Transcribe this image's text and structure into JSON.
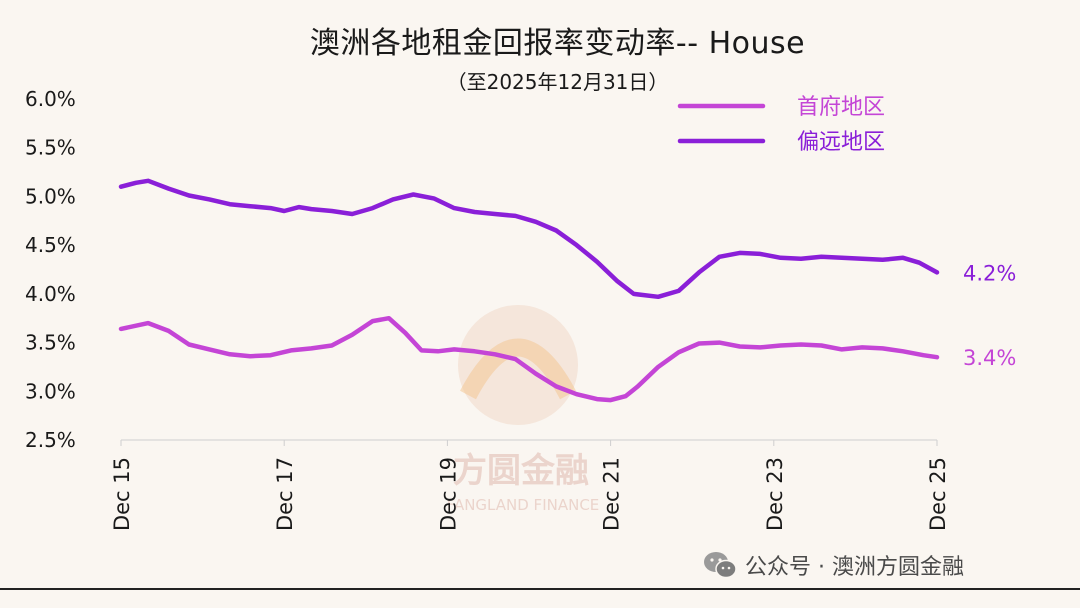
{
  "title": "澳洲各地租金回报率变动率-- House",
  "subtitle": "（至2025年12月31日）",
  "footer": {
    "account": "公众号 · 澳洲方圆金融"
  },
  "logo": {
    "text_cn": "方圆金融",
    "text_en": "FANGLAND FINANCE"
  },
  "colors": {
    "capital": "#c445d6",
    "regional": "#8a1fd8",
    "background": "#faf6f1"
  },
  "chart_data": {
    "type": "line",
    "x_ticks": [
      "Dec 15",
      "Dec 17",
      "Dec 19",
      "Dec 21",
      "Dec 23",
      "Dec 25"
    ],
    "y_ticks": [
      "6.0%",
      "5.5%",
      "5.0%",
      "4.5%",
      "4.0%",
      "3.5%",
      "3.0%",
      "2.5%"
    ],
    "ylim": [
      2.5,
      6.0
    ],
    "xlim": [
      2015.917,
      2025.917
    ],
    "legend_position": "top-right",
    "series": [
      {
        "name": "首府地区",
        "color": "#c445d6",
        "end_label": "3.4%",
        "points": [
          [
            2015.917,
            3.64
          ],
          [
            2016.25,
            3.7
          ],
          [
            2016.5,
            3.62
          ],
          [
            2016.75,
            3.48
          ],
          [
            2017.0,
            3.43
          ],
          [
            2017.25,
            3.38
          ],
          [
            2017.5,
            3.36
          ],
          [
            2017.75,
            3.37
          ],
          [
            2018.0,
            3.42
          ],
          [
            2018.25,
            3.44
          ],
          [
            2018.5,
            3.47
          ],
          [
            2018.75,
            3.58
          ],
          [
            2019.0,
            3.72
          ],
          [
            2019.2,
            3.75
          ],
          [
            2019.4,
            3.6
          ],
          [
            2019.6,
            3.42
          ],
          [
            2019.8,
            3.41
          ],
          [
            2020.0,
            3.43
          ],
          [
            2020.25,
            3.41
          ],
          [
            2020.5,
            3.38
          ],
          [
            2020.75,
            3.33
          ],
          [
            2021.0,
            3.18
          ],
          [
            2021.25,
            3.05
          ],
          [
            2021.5,
            2.97
          ],
          [
            2021.75,
            2.92
          ],
          [
            2021.917,
            2.91
          ],
          [
            2022.1,
            2.95
          ],
          [
            2022.25,
            3.05
          ],
          [
            2022.5,
            3.25
          ],
          [
            2022.75,
            3.4
          ],
          [
            2023.0,
            3.49
          ],
          [
            2023.25,
            3.5
          ],
          [
            2023.5,
            3.46
          ],
          [
            2023.75,
            3.45
          ],
          [
            2024.0,
            3.47
          ],
          [
            2024.25,
            3.48
          ],
          [
            2024.5,
            3.47
          ],
          [
            2024.75,
            3.43
          ],
          [
            2025.0,
            3.45
          ],
          [
            2025.25,
            3.44
          ],
          [
            2025.5,
            3.41
          ],
          [
            2025.75,
            3.37
          ],
          [
            2025.917,
            3.35
          ]
        ]
      },
      {
        "name": "偏远地区",
        "color": "#8a1fd8",
        "end_label": "4.2%",
        "points": [
          [
            2015.917,
            5.1
          ],
          [
            2016.1,
            5.14
          ],
          [
            2016.25,
            5.16
          ],
          [
            2016.5,
            5.08
          ],
          [
            2016.75,
            5.01
          ],
          [
            2017.0,
            4.97
          ],
          [
            2017.25,
            4.92
          ],
          [
            2017.5,
            4.9
          ],
          [
            2017.75,
            4.88
          ],
          [
            2017.917,
            4.85
          ],
          [
            2018.1,
            4.89
          ],
          [
            2018.25,
            4.87
          ],
          [
            2018.5,
            4.85
          ],
          [
            2018.75,
            4.82
          ],
          [
            2019.0,
            4.88
          ],
          [
            2019.25,
            4.97
          ],
          [
            2019.5,
            5.02
          ],
          [
            2019.75,
            4.98
          ],
          [
            2020.0,
            4.88
          ],
          [
            2020.25,
            4.84
          ],
          [
            2020.5,
            4.82
          ],
          [
            2020.75,
            4.8
          ],
          [
            2021.0,
            4.74
          ],
          [
            2021.25,
            4.65
          ],
          [
            2021.5,
            4.5
          ],
          [
            2021.75,
            4.33
          ],
          [
            2022.0,
            4.13
          ],
          [
            2022.2,
            4.0
          ],
          [
            2022.5,
            3.97
          ],
          [
            2022.75,
            4.03
          ],
          [
            2023.0,
            4.22
          ],
          [
            2023.25,
            4.38
          ],
          [
            2023.5,
            4.42
          ],
          [
            2023.75,
            4.41
          ],
          [
            2024.0,
            4.37
          ],
          [
            2024.25,
            4.36
          ],
          [
            2024.5,
            4.38
          ],
          [
            2024.75,
            4.37
          ],
          [
            2025.0,
            4.36
          ],
          [
            2025.25,
            4.35
          ],
          [
            2025.5,
            4.37
          ],
          [
            2025.7,
            4.32
          ],
          [
            2025.917,
            4.22
          ]
        ]
      }
    ]
  }
}
